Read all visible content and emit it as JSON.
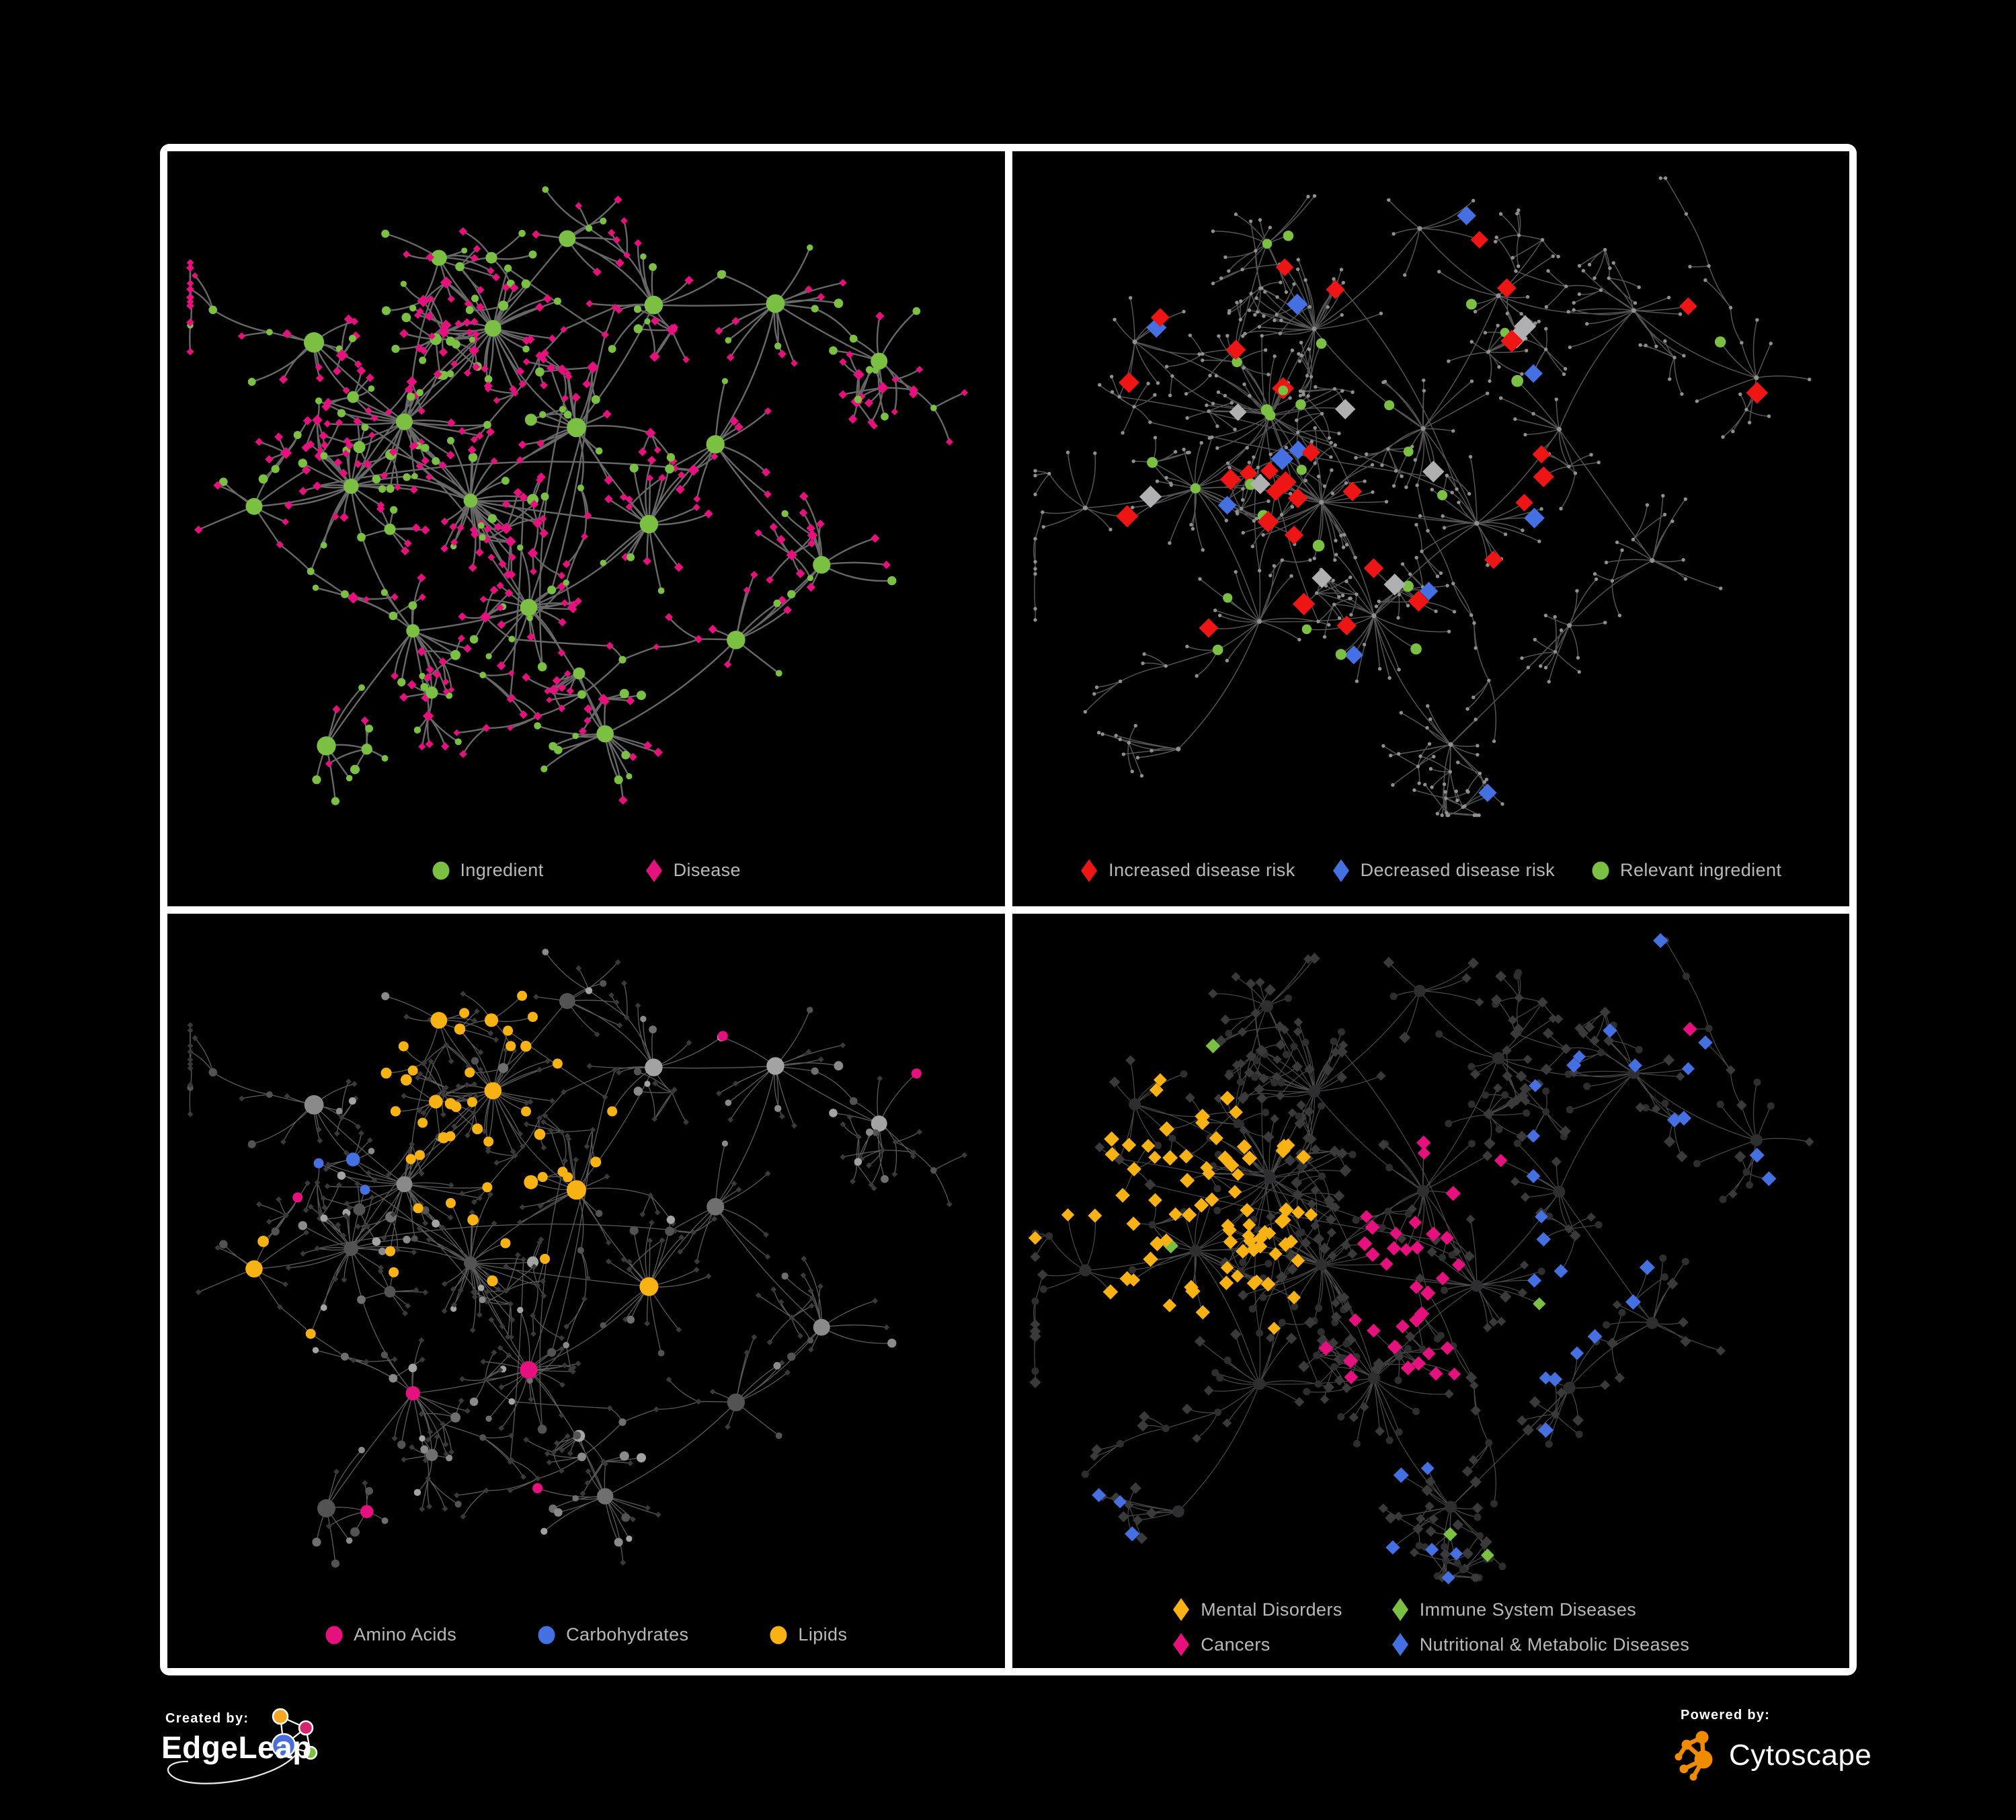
{
  "figure": {
    "background": "#000000",
    "frame_color": "#ffffff",
    "panel_background": "#000000",
    "legend_text_color": "#b9b9b9"
  },
  "panels": [
    {
      "id": "ingredient-disease",
      "legend": [
        {
          "label": "Ingredient",
          "shape": "circle",
          "color": "#7bc043"
        },
        {
          "label": "Disease",
          "shape": "diamond",
          "color": "#e6117e"
        }
      ]
    },
    {
      "id": "disease-risk",
      "legend": [
        {
          "label": "Increased disease risk",
          "shape": "diamond",
          "color": "#ee1515"
        },
        {
          "label": "Decreased disease risk",
          "shape": "diamond",
          "color": "#4470e2"
        },
        {
          "label": "Relevant ingredient",
          "shape": "circle",
          "color": "#7bc043"
        }
      ]
    },
    {
      "id": "macronutrient-classes",
      "legend": [
        {
          "label": "Amino Acids",
          "shape": "circle",
          "color": "#e6117e"
        },
        {
          "label": "Carbohydrates",
          "shape": "circle",
          "color": "#4470e2"
        },
        {
          "label": "Lipids",
          "shape": "circle",
          "color": "#f9b214"
        }
      ]
    },
    {
      "id": "disease-classes",
      "legend_columns": 2,
      "legend": [
        {
          "label": "Mental Disorders",
          "shape": "diamond",
          "color": "#f9b214"
        },
        {
          "label": "Immune System Diseases",
          "shape": "diamond",
          "color": "#7bc043"
        },
        {
          "label": "Cancers",
          "shape": "diamond",
          "color": "#e6117e"
        },
        {
          "label": "Nutritional & Metabolic Diseases",
          "shape": "diamond",
          "color": "#4470e2"
        }
      ]
    }
  ],
  "network_styles": {
    "base_node_gray": "#8f8f8f",
    "silver": "#b0b0b3",
    "dim_diamond": "#3a3a3a",
    "dim_circle": "#2e2e30",
    "gray_shades": [
      "#a3a3a3",
      "#8a8a8a",
      "#6f6f6f",
      "#535353"
    ],
    "edge_colors": [
      "#6e6e6e",
      "#5e5e5e",
      "#777777",
      "#585858"
    ]
  },
  "footer": {
    "created_by": {
      "label": "Created by:",
      "brand": "EdgeLeap"
    },
    "powered_by": {
      "label": "Powered by:",
      "brand": "Cytoscape"
    },
    "edgeleap_colors": {
      "blue": "#4a6fdc",
      "orange": "#f5a623",
      "pink": "#d6246e",
      "green": "#7bc043"
    },
    "cytoscape_color": "#f08b00"
  }
}
